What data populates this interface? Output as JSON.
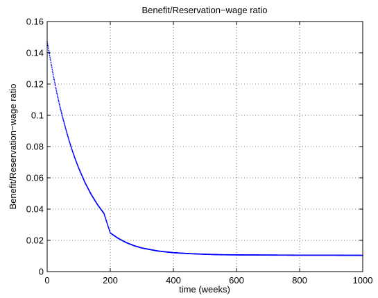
{
  "chart_data": {
    "type": "scatter",
    "title": "Benefit/Reservation−wage ratio",
    "xlabel": "time (weeks)",
    "ylabel": "Benefit/Reservation−wage ratio",
    "xlim": [
      0,
      1000
    ],
    "ylim": [
      0,
      0.16
    ],
    "xticks": [
      0,
      200,
      400,
      600,
      800,
      1000
    ],
    "xtick_labels": [
      "0",
      "200",
      "400",
      "600",
      "800",
      "1000"
    ],
    "yticks": [
      0,
      0.02,
      0.04,
      0.06,
      0.08,
      0.1,
      0.12,
      0.14,
      0.16
    ],
    "ytick_labels": [
      "0",
      "0.02",
      "0.04",
      "0.06",
      "0.08",
      "0.1",
      "0.12",
      "0.14",
      "0.16"
    ],
    "grid": true,
    "marker": "dot",
    "series": [
      {
        "color": "#0000ff",
        "x": [
          0,
          10,
          20,
          30,
          40,
          50,
          60,
          70,
          80,
          90,
          100,
          120,
          140,
          160,
          180,
          200,
          225,
          250,
          275,
          300,
          350,
          400,
          450,
          500,
          550,
          600,
          700,
          800,
          900,
          1000
        ],
        "y": [
          0.147,
          0.136,
          0.125,
          0.115,
          0.106,
          0.098,
          0.0905,
          0.0835,
          0.0772,
          0.0714,
          0.0662,
          0.0569,
          0.0492,
          0.0427,
          0.0372,
          0.0247,
          0.0213,
          0.0186,
          0.0166,
          0.0151,
          0.0132,
          0.0121,
          0.0115,
          0.0111,
          0.0108,
          0.0107,
          0.0106,
          0.0105,
          0.0105,
          0.0104
        ]
      }
    ]
  }
}
